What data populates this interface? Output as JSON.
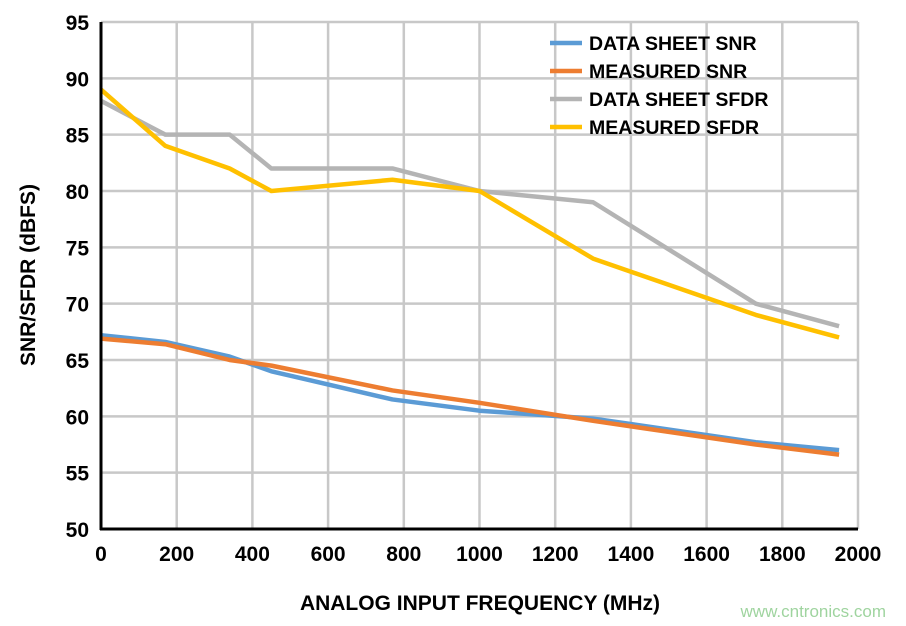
{
  "chart_data": {
    "type": "line",
    "title": "",
    "xlabel": "ANALOG INPUT FREQUENCY (MHz)",
    "ylabel": "SNR/SFDR (dBFS)",
    "xlim": [
      0,
      2000
    ],
    "ylim": [
      50,
      95
    ],
    "xticks": [
      0,
      200,
      400,
      600,
      800,
      1000,
      1200,
      1400,
      1600,
      1800,
      2000
    ],
    "yticks": [
      50,
      55,
      60,
      65,
      70,
      75,
      80,
      85,
      90,
      95
    ],
    "grid": true,
    "legend_position": "top-right",
    "x": [
      0,
      170,
      340,
      450,
      770,
      1000,
      1300,
      1730,
      1950
    ],
    "series": [
      {
        "name": "DATA SHEET SNR",
        "color": "#5b9bd5",
        "values": [
          67.2,
          66.6,
          65.3,
          64.0,
          61.5,
          60.5,
          59.8,
          57.7,
          57.0
        ]
      },
      {
        "name": "MEASURED SNR",
        "color": "#ed7d31",
        "values": [
          66.9,
          66.4,
          65.0,
          64.5,
          62.3,
          61.2,
          59.6,
          57.5,
          56.6
        ]
      },
      {
        "name": "DATA SHEET SFDR",
        "color": "#b4b4b4",
        "values": [
          88,
          85,
          85,
          82,
          82,
          80,
          79,
          70,
          68
        ]
      },
      {
        "name": "MEASURED SFDR",
        "color": "#ffc000",
        "values": [
          89,
          84,
          82,
          80,
          81,
          80,
          74,
          69,
          67
        ]
      }
    ]
  },
  "watermark": "www.cntronics.com"
}
